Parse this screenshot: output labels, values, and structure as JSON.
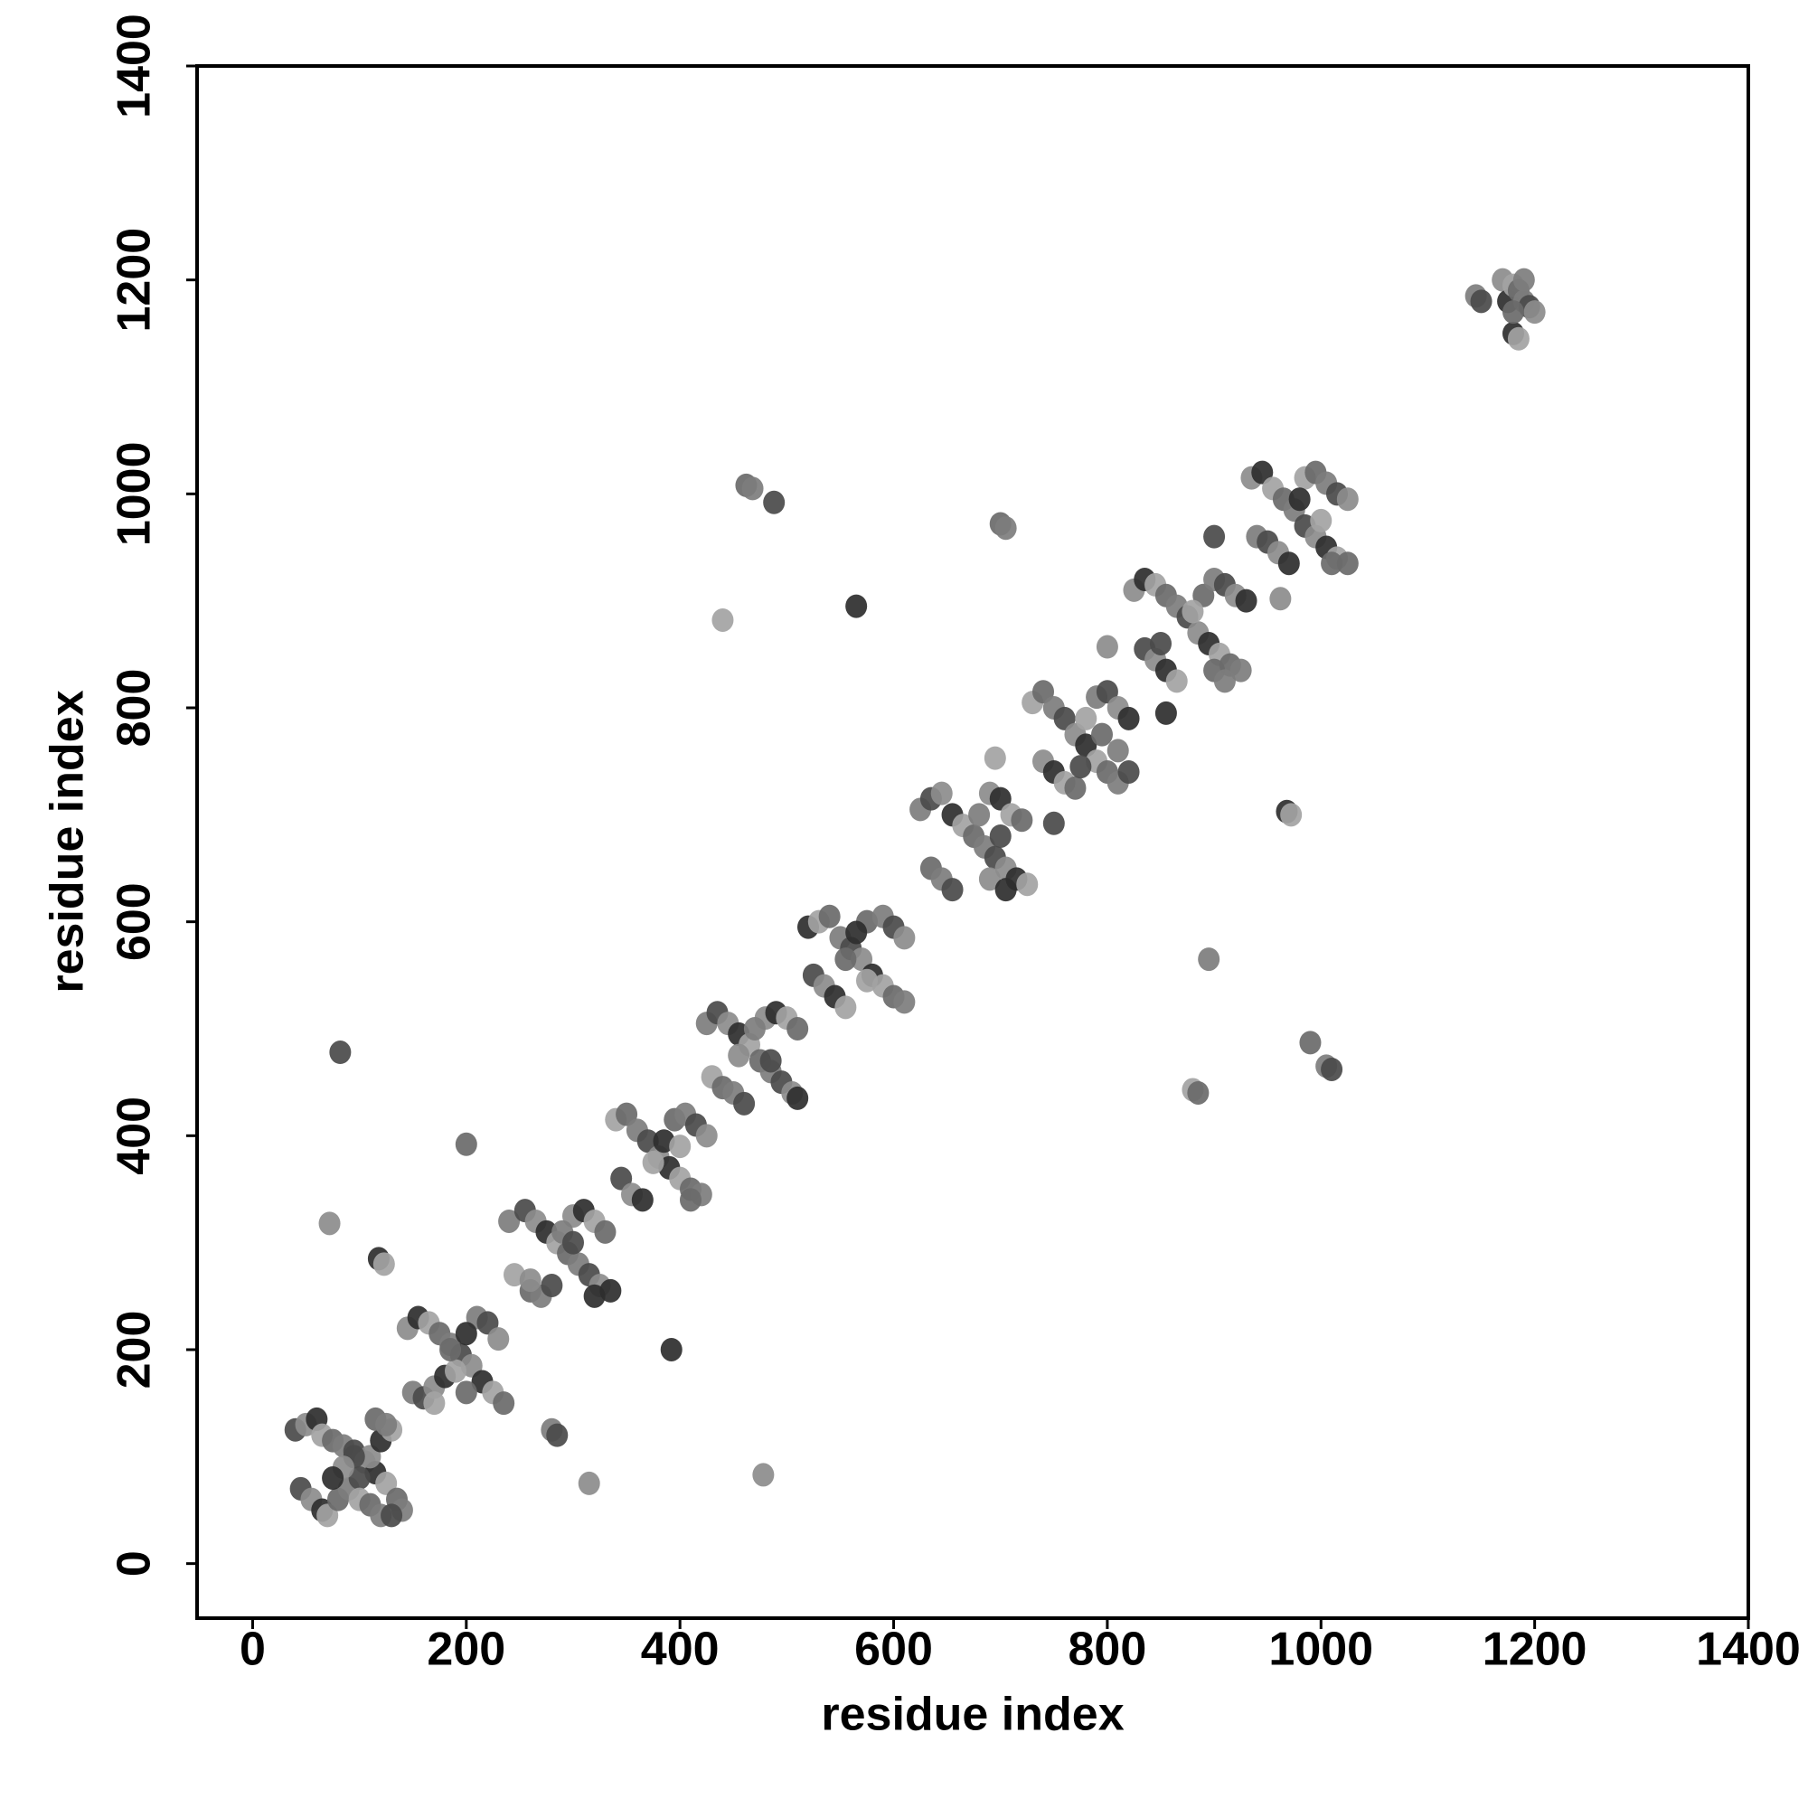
{
  "chart_data": {
    "type": "scatter",
    "x_label": "residue index",
    "y_label": "residue index",
    "xlim": [
      -52,
      1400
    ],
    "ylim": [
      -51,
      1400
    ],
    "xticks": [
      0,
      200,
      400,
      600,
      800,
      1000,
      1200,
      1400
    ],
    "yticks": [
      0,
      200,
      400,
      600,
      800,
      1000,
      1200,
      1400
    ],
    "palette": [
      "#4a4a4a",
      "#8c8c8c",
      "#2e2e2e",
      "#a3a3a3",
      "#6a6a6a",
      "#7d7d7d"
    ],
    "x": [
      40,
      50,
      60,
      65,
      75,
      85,
      95,
      105,
      115,
      125,
      135,
      140,
      45,
      55,
      65,
      70,
      80,
      90,
      100,
      110,
      120,
      130,
      115,
      125,
      95,
      85,
      75,
      100,
      110,
      120,
      130,
      145,
      155,
      165,
      175,
      185,
      195,
      205,
      215,
      225,
      235,
      150,
      160,
      170,
      180,
      190,
      200,
      210,
      220,
      230,
      200,
      170,
      185,
      240,
      255,
      265,
      275,
      285,
      295,
      305,
      315,
      325,
      335,
      245,
      260,
      270,
      280,
      300,
      310,
      320,
      330,
      290,
      300,
      260,
      320,
      340,
      350,
      360,
      370,
      380,
      390,
      400,
      410,
      420,
      345,
      355,
      365,
      375,
      395,
      405,
      415,
      425,
      385,
      400,
      410,
      425,
      435,
      445,
      455,
      465,
      475,
      485,
      495,
      505,
      510,
      430,
      440,
      450,
      460,
      480,
      490,
      500,
      510,
      470,
      485,
      455,
      520,
      530,
      540,
      550,
      560,
      570,
      580,
      590,
      600,
      610,
      525,
      535,
      545,
      555,
      575,
      590,
      600,
      610,
      565,
      575,
      555,
      625,
      635,
      645,
      655,
      665,
      675,
      685,
      695,
      705,
      715,
      725,
      635,
      645,
      655,
      690,
      700,
      710,
      720,
      680,
      700,
      690,
      705,
      730,
      740,
      750,
      760,
      770,
      780,
      790,
      800,
      810,
      820,
      740,
      750,
      760,
      770,
      790,
      800,
      810,
      820,
      780,
      795,
      810,
      775,
      825,
      835,
      845,
      855,
      865,
      875,
      885,
      895,
      905,
      915,
      925,
      835,
      845,
      855,
      865,
      890,
      900,
      910,
      920,
      930,
      880,
      900,
      910,
      850,
      935,
      945,
      955,
      965,
      975,
      985,
      995,
      1005,
      1015,
      1025,
      940,
      950,
      960,
      970,
      985,
      995,
      1005,
      1015,
      1025,
      980,
      1000,
      1010,
      1145,
      1150,
      1170,
      1175,
      1180,
      1185,
      1190,
      1195,
      1200,
      1180,
      1185,
      1180,
      1190,
      82,
      72,
      118,
      123,
      200,
      280,
      285,
      315,
      392,
      440,
      462,
      468,
      488,
      478,
      565,
      695,
      700,
      705,
      750,
      800,
      855,
      880,
      885,
      895,
      900,
      962,
      968,
      972,
      990,
      1005,
      1010
    ],
    "values": [
      125,
      130,
      135,
      120,
      115,
      110,
      105,
      95,
      85,
      75,
      60,
      50,
      70,
      60,
      50,
      45,
      60,
      70,
      80,
      100,
      115,
      125,
      135,
      130,
      100,
      90,
      80,
      60,
      55,
      45,
      45,
      220,
      230,
      225,
      215,
      205,
      195,
      185,
      170,
      160,
      150,
      160,
      155,
      165,
      175,
      180,
      160,
      230,
      225,
      210,
      215,
      150,
      200,
      320,
      330,
      320,
      310,
      300,
      290,
      280,
      270,
      260,
      255,
      270,
      255,
      250,
      260,
      325,
      330,
      320,
      310,
      310,
      300,
      265,
      250,
      415,
      420,
      405,
      395,
      380,
      370,
      360,
      350,
      345,
      360,
      345,
      340,
      375,
      415,
      420,
      410,
      400,
      395,
      390,
      340,
      505,
      515,
      505,
      495,
      485,
      470,
      460,
      450,
      440,
      435,
      455,
      445,
      440,
      430,
      510,
      515,
      510,
      500,
      500,
      470,
      475,
      595,
      600,
      605,
      585,
      575,
      565,
      550,
      540,
      530,
      525,
      550,
      540,
      530,
      520,
      600,
      605,
      595,
      585,
      590,
      545,
      565,
      705,
      715,
      720,
      700,
      690,
      680,
      670,
      660,
      650,
      640,
      635,
      650,
      640,
      630,
      720,
      715,
      700,
      695,
      700,
      680,
      640,
      630,
      805,
      815,
      800,
      790,
      775,
      765,
      750,
      740,
      730,
      740,
      750,
      740,
      730,
      725,
      810,
      815,
      800,
      790,
      790,
      775,
      760,
      745,
      910,
      920,
      915,
      905,
      895,
      885,
      870,
      860,
      850,
      840,
      835,
      855,
      845,
      835,
      825,
      905,
      920,
      915,
      905,
      900,
      890,
      835,
      825,
      860,
      1015,
      1020,
      1005,
      995,
      985,
      970,
      960,
      950,
      940,
      935,
      960,
      955,
      945,
      935,
      1015,
      1020,
      1010,
      1000,
      995,
      995,
      975,
      935,
      1185,
      1180,
      1200,
      1180,
      1195,
      1190,
      1180,
      1175,
      1170,
      1150,
      1145,
      1170,
      1200,
      478,
      318,
      285,
      280,
      392,
      125,
      120,
      75,
      200,
      882,
      1008,
      1005,
      992,
      83,
      895,
      753,
      972,
      968,
      692,
      857,
      795,
      443,
      440,
      565,
      960,
      902,
      703,
      700,
      487,
      465,
      462
    ]
  }
}
